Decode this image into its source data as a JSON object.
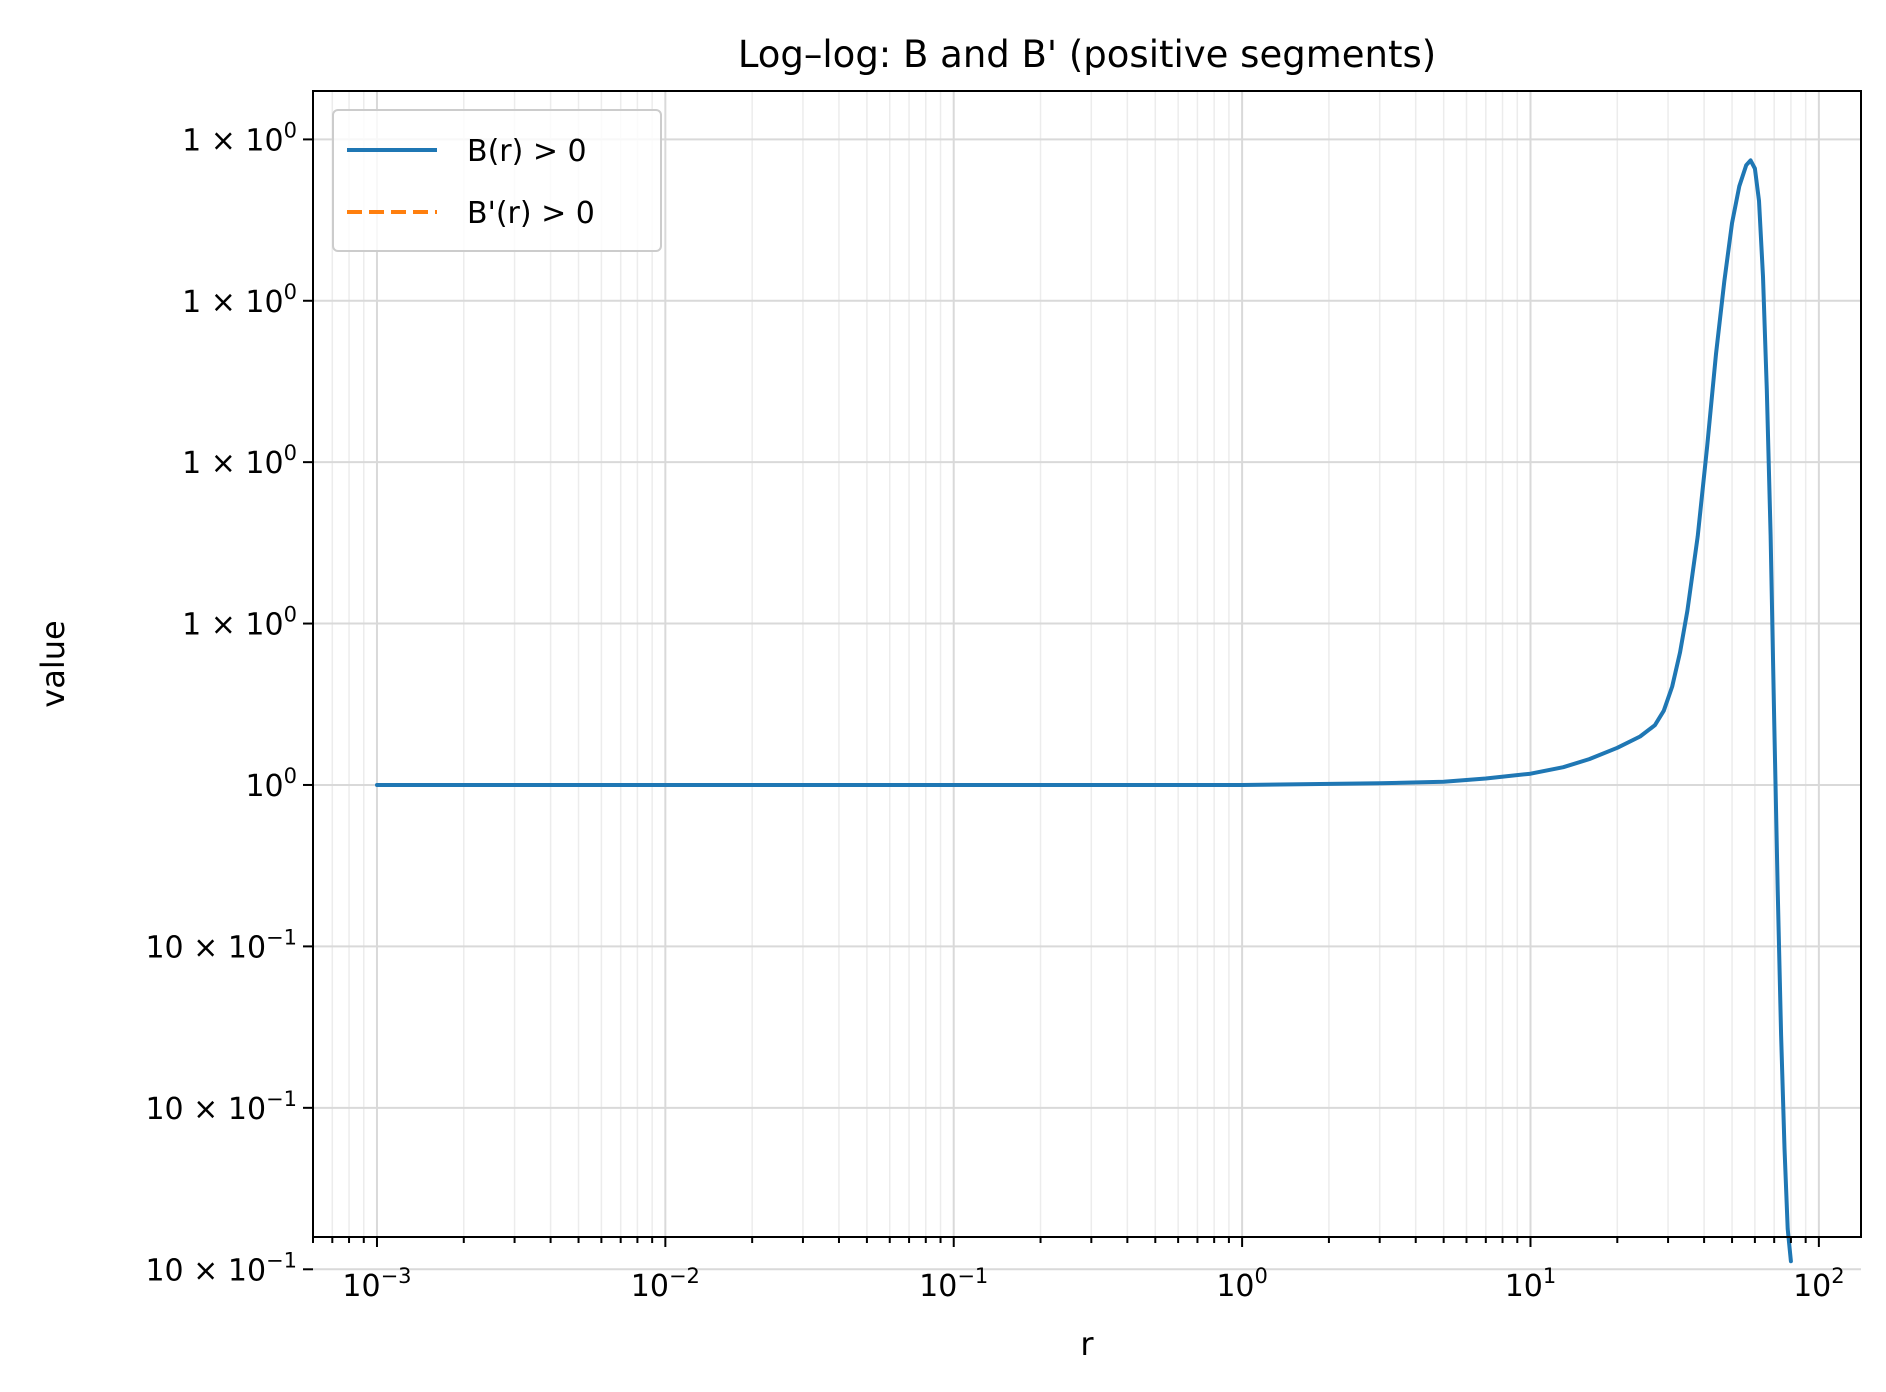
{
  "chart_data": {
    "type": "line",
    "title": "Log–log: B and B' (positive segments)",
    "xlabel": "r",
    "ylabel": "value",
    "xscale": "log",
    "yscale": "log",
    "xlim": [
      0.0006,
      140
    ],
    "ylim": [
      0.99957,
      1.00028
    ],
    "grid": true,
    "legend_position": "upper-left",
    "x_ticks": [
      {
        "value": 0.001,
        "base": "10",
        "exp": "−3"
      },
      {
        "value": 0.01,
        "base": "10",
        "exp": "−2"
      },
      {
        "value": 0.1,
        "base": "10",
        "exp": "−1"
      },
      {
        "value": 1,
        "base": "10",
        "exp": "0"
      },
      {
        "value": 10,
        "base": "10",
        "exp": "1"
      },
      {
        "value": 100,
        "base": "10",
        "exp": "2"
      }
    ],
    "y_ticks": [
      {
        "value": 1.00025,
        "mantissa": "1 × 10",
        "exp": "0"
      },
      {
        "value": 1.00015,
        "mantissa": "1 × 10",
        "exp": "0"
      },
      {
        "value": 1.00005,
        "mantissa": "1 × 10",
        "exp": "0"
      },
      {
        "value": 0.99995,
        "mantissa": "1 × 10",
        "exp": "0"
      },
      {
        "value": 0.99985,
        "mantissa": "",
        "exp": "0",
        "base": "10"
      },
      {
        "value": 0.99975,
        "mantissa": "10 × 10",
        "exp": "−1"
      },
      {
        "value": 0.99965,
        "mantissa": "10 × 10",
        "exp": "−1"
      },
      {
        "value": 0.99955,
        "mantissa": "10 × 10",
        "exp": "−1"
      }
    ],
    "series": [
      {
        "name": "B(r) > 0",
        "color": "#1f77b4",
        "style": "solid",
        "x": [
          0.001,
          0.01,
          0.1,
          1,
          3,
          5,
          7,
          10,
          13,
          16,
          20,
          24,
          27,
          29,
          31,
          33,
          35,
          38,
          41,
          44,
          47,
          50,
          53,
          56,
          58,
          60,
          62,
          64,
          66,
          68,
          70,
          72,
          74,
          76,
          78,
          80
        ],
        "y": [
          0.99985,
          0.99985,
          0.99985,
          0.99985,
          0.999851,
          0.999852,
          0.999854,
          0.999857,
          0.999861,
          0.999866,
          0.999873,
          0.99988,
          0.999887,
          0.999896,
          0.999911,
          0.999932,
          0.999958,
          1.000004,
          1.00006,
          1.000117,
          1.000162,
          1.000198,
          1.000221,
          1.000234,
          1.000237,
          1.000232,
          1.000212,
          1.000165,
          1.000095,
          1.000005,
          0.99989,
          0.999785,
          0.999695,
          0.999625,
          0.999575,
          0.999555
        ]
      },
      {
        "name": "B'(r) > 0",
        "color": "#ff7f0e",
        "style": "dashed",
        "x": [],
        "y": []
      }
    ]
  }
}
